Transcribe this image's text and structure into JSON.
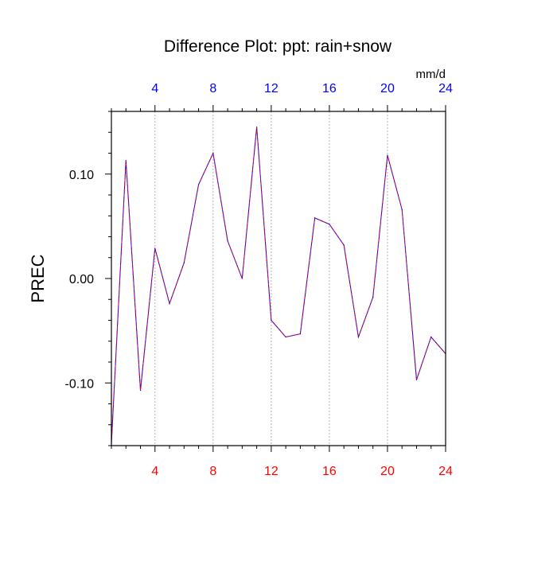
{
  "chart_data": {
    "type": "line",
    "title": "Difference Plot: ppt: rain+snow",
    "ylabel": "PREC",
    "units_label": "mm/d",
    "xlim": [
      1,
      24
    ],
    "ylim": [
      -0.16,
      0.16
    ],
    "bottom_ticks": [
      4,
      8,
      12,
      16,
      20,
      24
    ],
    "bottom_tick_labels": [
      "4",
      "8",
      "12",
      "16",
      "20",
      "24"
    ],
    "top_ticks": [
      4,
      8,
      12,
      16,
      20,
      24
    ],
    "top_tick_labels": [
      "4",
      "8",
      "12",
      "16",
      "20",
      "24"
    ],
    "y_ticks": [
      -0.1,
      0.0,
      0.1
    ],
    "y_tick_labels": [
      "-0.10",
      "0.00",
      "0.10"
    ],
    "vertical_grid": true,
    "series": [
      {
        "line_style": "dashed",
        "x": [
          1,
          2,
          3,
          4,
          5,
          6,
          7,
          8,
          9,
          10,
          11,
          12,
          13,
          14,
          15,
          16,
          17,
          18,
          19,
          20,
          21,
          22,
          23,
          24
        ],
        "values": [
          -0.158,
          0.113,
          -0.107,
          0.029,
          -0.024,
          0.015,
          0.09,
          0.12,
          0.036,
          0.0,
          0.145,
          -0.04,
          -0.056,
          -0.053,
          0.058,
          0.052,
          0.032,
          -0.056,
          -0.018,
          0.118,
          0.066,
          -0.097,
          -0.056,
          -0.072
        ]
      }
    ],
    "colors": {
      "bottom_axis": "#ff0000",
      "top_axis": "#0000ff",
      "line_primary": "#0000ff",
      "line_secondary": "#ff0000",
      "grid": "#b3b3b3",
      "frame": "#000000"
    }
  }
}
